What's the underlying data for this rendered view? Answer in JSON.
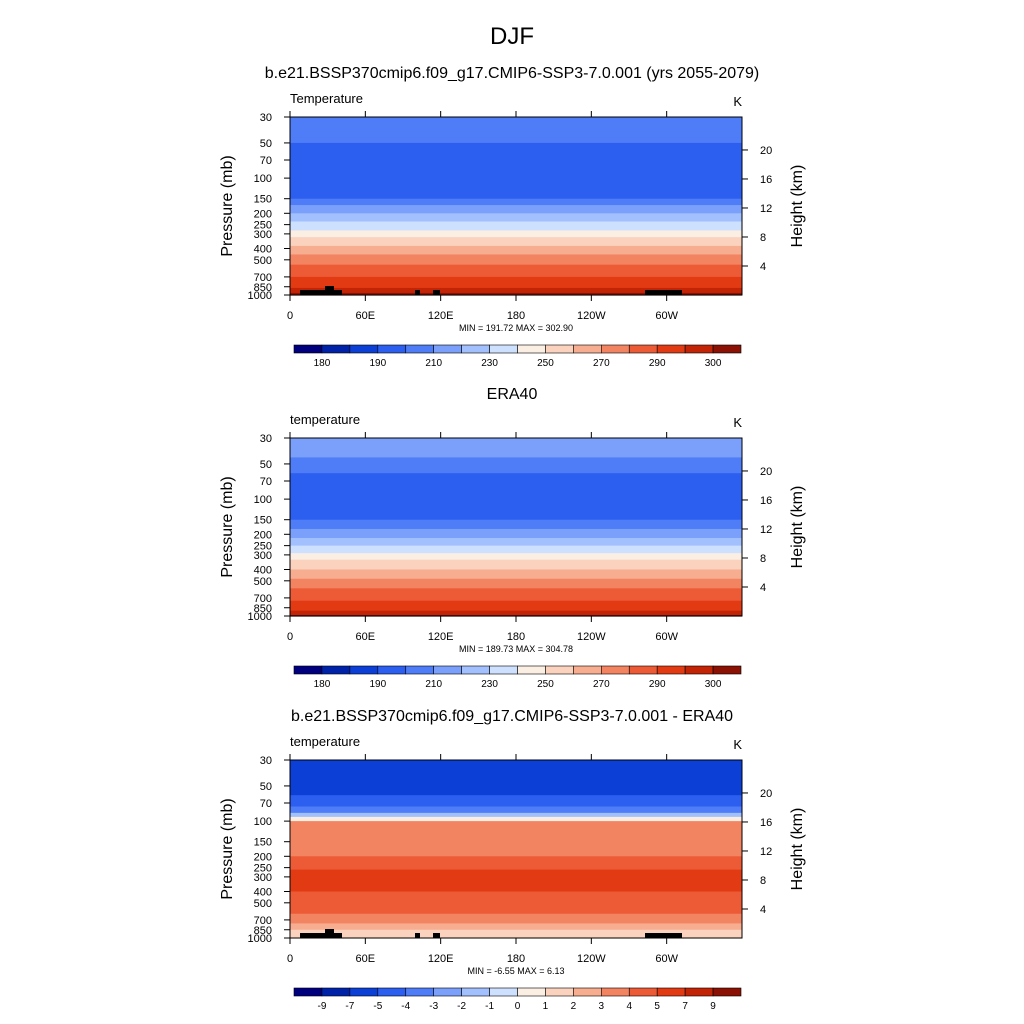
{
  "figure_title": "DJF",
  "colors": {
    "temp": [
      "#00007f",
      "#0022a8",
      "#0b3fd6",
      "#2c5ef0",
      "#4e7df7",
      "#7aa0fb",
      "#a2c0fd",
      "#cde0fe",
      "#fbeee3",
      "#fad2be",
      "#f7ad90",
      "#f38462",
      "#ed5a36",
      "#e23b13",
      "#c42406",
      "#8a1103"
    ],
    "diff": [
      "#00007f",
      "#0022a8",
      "#0b3fd6",
      "#2c5ef0",
      "#4e7df7",
      "#7aa0fb",
      "#a2c0fd",
      "#cde0fe",
      "#fbeee3",
      "#fad2be",
      "#f7ad90",
      "#f38462",
      "#ed5a36",
      "#e23b13",
      "#c42406",
      "#8a1103"
    ]
  },
  "chart_data": [
    {
      "type": "heatmap",
      "title": "b.e21.BSSP370cmip6.f09_g17.CMIP6-SSP3-7.0.001 (yrs 2055-2079)",
      "left_label": "Temperature",
      "right_label": "K",
      "ylabel": "Pressure (mb)",
      "ylabel_right": "Height (km)",
      "x_ticks": [
        "0",
        "60E",
        "120E",
        "180",
        "120W",
        "60W"
      ],
      "y_ticks": [
        "30",
        "50",
        "70",
        "100",
        "150",
        "200",
        "250",
        "300",
        "400",
        "500",
        "700",
        "850",
        "1000"
      ],
      "height_ticks": [
        "20",
        "16",
        "12",
        "8",
        "4"
      ],
      "stats": "MIN = 191.72  MAX = 302.90",
      "colorbar_labels": [
        "180",
        "190",
        "210",
        "230",
        "250",
        "270",
        "290",
        "300"
      ],
      "profile": [
        {
          "p": 30,
          "lvl": 4
        },
        {
          "p": 45,
          "lvl": 4
        },
        {
          "p": 50,
          "lvl": 3
        },
        {
          "p": 110,
          "lvl": 3
        },
        {
          "p": 150,
          "lvl": 4
        },
        {
          "p": 170,
          "lvl": 5
        },
        {
          "p": 200,
          "lvl": 6
        },
        {
          "p": 235,
          "lvl": 7
        },
        {
          "p": 280,
          "lvl": 8
        },
        {
          "p": 320,
          "lvl": 9
        },
        {
          "p": 380,
          "lvl": 10
        },
        {
          "p": 450,
          "lvl": 11
        },
        {
          "p": 550,
          "lvl": 12
        },
        {
          "p": 700,
          "lvl": 13
        },
        {
          "p": 870,
          "lvl": 14
        },
        {
          "p": 960,
          "lvl": 15
        },
        {
          "p": 1000,
          "lvl": 15
        }
      ]
    },
    {
      "type": "heatmap",
      "title": "ERA40",
      "left_label": "temperature",
      "right_label": "K",
      "ylabel": "Pressure (mb)",
      "ylabel_right": "Height (km)",
      "x_ticks": [
        "0",
        "60E",
        "120E",
        "180",
        "120W",
        "60W"
      ],
      "y_ticks": [
        "30",
        "50",
        "70",
        "100",
        "150",
        "200",
        "250",
        "300",
        "400",
        "500",
        "700",
        "850",
        "1000"
      ],
      "height_ticks": [
        "20",
        "16",
        "12",
        "8",
        "4"
      ],
      "stats": "MIN = 189.73  MAX = 304.78",
      "colorbar_labels": [
        "180",
        "190",
        "210",
        "230",
        "250",
        "270",
        "290",
        "300"
      ],
      "profile": [
        {
          "p": 30,
          "lvl": 5
        },
        {
          "p": 44,
          "lvl": 4
        },
        {
          "p": 60,
          "lvl": 3
        },
        {
          "p": 120,
          "lvl": 3
        },
        {
          "p": 150,
          "lvl": 4
        },
        {
          "p": 180,
          "lvl": 5
        },
        {
          "p": 215,
          "lvl": 6
        },
        {
          "p": 250,
          "lvl": 7
        },
        {
          "p": 290,
          "lvl": 8
        },
        {
          "p": 330,
          "lvl": 9
        },
        {
          "p": 400,
          "lvl": 10
        },
        {
          "p": 480,
          "lvl": 11
        },
        {
          "p": 580,
          "lvl": 12
        },
        {
          "p": 740,
          "lvl": 13
        },
        {
          "p": 900,
          "lvl": 14
        },
        {
          "p": 980,
          "lvl": 15
        },
        {
          "p": 1000,
          "lvl": 15
        }
      ]
    },
    {
      "type": "heatmap",
      "title": "b.e21.BSSP370cmip6.f09_g17.CMIP6-SSP3-7.0.001 - ERA40",
      "left_label": "temperature",
      "right_label": "K",
      "ylabel": "Pressure (mb)",
      "ylabel_right": "Height (km)",
      "x_ticks": [
        "0",
        "60E",
        "120E",
        "180",
        "120W",
        "60W"
      ],
      "y_ticks": [
        "30",
        "50",
        "70",
        "100",
        "150",
        "200",
        "250",
        "300",
        "400",
        "500",
        "700",
        "850",
        "1000"
      ],
      "height_ticks": [
        "20",
        "16",
        "12",
        "8",
        "4"
      ],
      "stats": "MIN = -6.55  MAX =  6.13",
      "colorbar_labels": [
        "-9",
        "-7",
        "-5",
        "-4",
        "-3",
        "-2",
        "-1",
        "0",
        "1",
        "2",
        "3",
        "4",
        "5",
        "7",
        "9"
      ],
      "profile": [
        {
          "p": 30,
          "lvl": 2
        },
        {
          "p": 60,
          "lvl": 3
        },
        {
          "p": 75,
          "lvl": 4
        },
        {
          "p": 85,
          "lvl": 6
        },
        {
          "p": 92,
          "lvl": 8
        },
        {
          "p": 100,
          "lvl": 11
        },
        {
          "p": 200,
          "lvl": 12
        },
        {
          "p": 260,
          "lvl": 13
        },
        {
          "p": 400,
          "lvl": 12
        },
        {
          "p": 550,
          "lvl": 12
        },
        {
          "p": 620,
          "lvl": 11
        },
        {
          "p": 750,
          "lvl": 10
        },
        {
          "p": 850,
          "lvl": 9
        },
        {
          "p": 1000,
          "lvl": 9
        }
      ]
    }
  ]
}
